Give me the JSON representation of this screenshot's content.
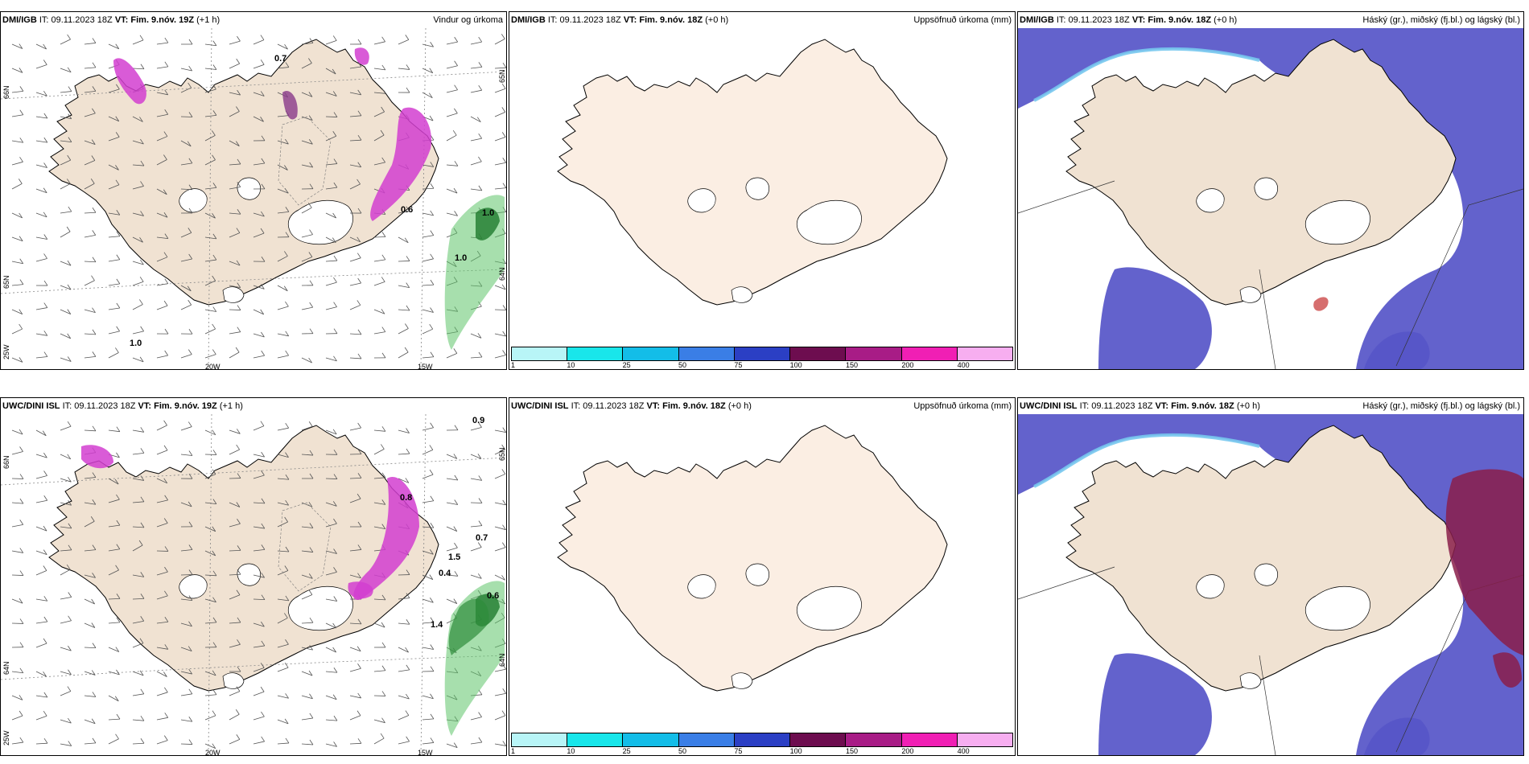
{
  "rows": [
    {
      "model": "DMI/IGB",
      "panels": [
        {
          "id": "r1p1",
          "it": "IT: 09.11.2023 18Z",
          "vt_label": "VT:",
          "vt": "Fim. 9.nóv. 19Z",
          "lead": "(+1 h)",
          "title_right": "Vindur og úrkoma",
          "values": [
            "0.7",
            "1.0",
            "1.0",
            "1.0",
            "0.6"
          ],
          "lat_labels": [
            "66N",
            "65N",
            "64N"
          ],
          "lon_labels": [
            "20W",
            "15W"
          ],
          "west_lon": "25W"
        },
        {
          "id": "r1p2",
          "it": "IT: 09.11.2023 18Z",
          "vt_label": "VT:",
          "vt": "Fim. 9.nóv. 18Z",
          "lead": "(+0 h)",
          "title_right": "Uppsöfnuð úrkoma (mm)"
        },
        {
          "id": "r1p3",
          "it": "IT: 09.11.2023 18Z",
          "vt_label": "VT:",
          "vt": "Fim. 9.nóv. 18Z",
          "lead": "(+0 h)",
          "title_right": "Háský (gr.), miðský (fj.bl.) og lágský (bl.)"
        }
      ]
    },
    {
      "model": "UWC/DINI ISL",
      "panels": [
        {
          "id": "r2p1",
          "it": "IT: 09.11.2023 18Z",
          "vt_label": "VT:",
          "vt": "Fim. 9.nóv. 19Z",
          "lead": "(+1 h)",
          "title_right": "",
          "values": [
            "0.9",
            "0.8",
            "0.7",
            "0.6",
            "1.4",
            "1.5",
            "0.4"
          ],
          "lat_labels": [
            "66N",
            "65N",
            "64N"
          ],
          "lon_labels": [
            "20W",
            "15W"
          ],
          "west_lon": "25W"
        },
        {
          "id": "r2p2",
          "it": "IT: 09.11.2023 18Z",
          "vt_label": "VT:",
          "vt": "Fim. 9.nóv. 18Z",
          "lead": "(+0 h)",
          "title_right": "Uppsöfnuð úrkoma (mm)"
        },
        {
          "id": "r2p3",
          "it": "IT: 09.11.2023 18Z",
          "vt_label": "VT:",
          "vt": "Fim. 9.nóv. 18Z",
          "lead": "(+0 h)",
          "title_right": "Háský (gr.), miðský (fj.bl.) og lágský (bl.)"
        }
      ]
    }
  ],
  "colorbar": {
    "ticks": [
      "1",
      "10",
      "25",
      "50",
      "75",
      "100",
      "150",
      "200",
      "400"
    ],
    "colors": [
      "#b8f5f7",
      "#19e6ea",
      "#13bde8",
      "#3a7ee6",
      "#2b3fc4",
      "#6d0d4f",
      "#a81c86",
      "#f01fb4",
      "#f7aef0"
    ]
  },
  "colors": {
    "land": "#f0e2d2",
    "land_light": "#fbeee3",
    "glacier": "#ffffff",
    "precip_magenta": "#d23ed0",
    "precip_green": "#5fc46a",
    "low_cloud": "#5655c8",
    "mid_cloud": "#77c8ee",
    "high_cloud_red": "#8a1f4a"
  }
}
